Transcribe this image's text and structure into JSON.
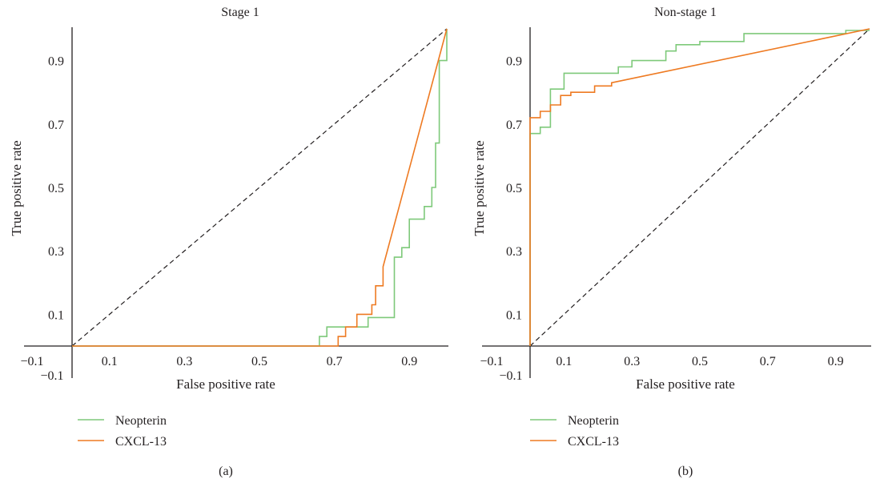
{
  "colors": {
    "neopterin": "#7ec97a",
    "cxcl13": "#ee7a22",
    "axis": "#231f20",
    "reference": "#231f20"
  },
  "chart_data": [
    {
      "type": "line",
      "panel": "(a)",
      "title": "Stage 1",
      "xlabel": "False positive rate",
      "ylabel": "True positive rate",
      "xlim": [
        0,
        1
      ],
      "ylim": [
        0,
        1
      ],
      "x_ticks": [
        "0.1",
        "0.3",
        "0.5",
        "0.7",
        "0.9"
      ],
      "y_ticks": [
        "0.1",
        "0.3",
        "0.5",
        "0.7",
        "0.9"
      ],
      "origin_x_label": "−0.1",
      "origin_y_label": "−0.1",
      "grid": false,
      "legend_position": "bottom-left",
      "reference_line": "diagonal dashed",
      "series": [
        {
          "name": "Neopterin",
          "points": [
            [
              0,
              0
            ],
            [
              0.66,
              0
            ],
            [
              0.66,
              0.03
            ],
            [
              0.68,
              0.03
            ],
            [
              0.68,
              0.06
            ],
            [
              0.79,
              0.06
            ],
            [
              0.79,
              0.09
            ],
            [
              0.86,
              0.09
            ],
            [
              0.86,
              0.28
            ],
            [
              0.88,
              0.28
            ],
            [
              0.88,
              0.31
            ],
            [
              0.9,
              0.31
            ],
            [
              0.9,
              0.4
            ],
            [
              0.94,
              0.4
            ],
            [
              0.94,
              0.44
            ],
            [
              0.96,
              0.44
            ],
            [
              0.96,
              0.5
            ],
            [
              0.97,
              0.5
            ],
            [
              0.97,
              0.64
            ],
            [
              0.98,
              0.64
            ],
            [
              0.98,
              0.9
            ],
            [
              1.0,
              0.9
            ],
            [
              1.0,
              1.0
            ]
          ]
        },
        {
          "name": "CXCL-13",
          "points": [
            [
              0,
              0
            ],
            [
              0.71,
              0
            ],
            [
              0.71,
              0.03
            ],
            [
              0.73,
              0.03
            ],
            [
              0.73,
              0.06
            ],
            [
              0.76,
              0.06
            ],
            [
              0.76,
              0.1
            ],
            [
              0.8,
              0.1
            ],
            [
              0.8,
              0.13
            ],
            [
              0.81,
              0.13
            ],
            [
              0.81,
              0.19
            ],
            [
              0.83,
              0.19
            ],
            [
              0.83,
              0.25
            ],
            [
              1.0,
              1.0
            ]
          ]
        }
      ]
    },
    {
      "type": "line",
      "panel": "(b)",
      "title": "Non-stage 1",
      "xlabel": "False positive rate",
      "ylabel": "True positive rate",
      "xlim": [
        0,
        1
      ],
      "ylim": [
        0,
        1
      ],
      "x_ticks": [
        "0.1",
        "0.3",
        "0.5",
        "0.7",
        "0.9"
      ],
      "y_ticks": [
        "0.1",
        "0.3",
        "0.5",
        "0.7",
        "0.9"
      ],
      "origin_x_label": "−0.1",
      "origin_y_label": "−0.1",
      "grid": false,
      "legend_position": "bottom-left",
      "reference_line": "diagonal dashed",
      "series": [
        {
          "name": "Neopterin",
          "points": [
            [
              0,
              0
            ],
            [
              0,
              0.67
            ],
            [
              0.03,
              0.67
            ],
            [
              0.03,
              0.69
            ],
            [
              0.06,
              0.69
            ],
            [
              0.06,
              0.81
            ],
            [
              0.1,
              0.81
            ],
            [
              0.1,
              0.86
            ],
            [
              0.26,
              0.86
            ],
            [
              0.26,
              0.88
            ],
            [
              0.3,
              0.88
            ],
            [
              0.3,
              0.9
            ],
            [
              0.4,
              0.9
            ],
            [
              0.4,
              0.93
            ],
            [
              0.43,
              0.93
            ],
            [
              0.43,
              0.95
            ],
            [
              0.5,
              0.95
            ],
            [
              0.5,
              0.96
            ],
            [
              0.63,
              0.96
            ],
            [
              0.63,
              0.985
            ],
            [
              0.93,
              0.985
            ],
            [
              0.93,
              0.995
            ],
            [
              1.0,
              0.995
            ]
          ]
        },
        {
          "name": "CXCL-13",
          "points": [
            [
              0,
              0
            ],
            [
              0,
              0.72
            ],
            [
              0.03,
              0.72
            ],
            [
              0.03,
              0.74
            ],
            [
              0.06,
              0.74
            ],
            [
              0.06,
              0.76
            ],
            [
              0.09,
              0.76
            ],
            [
              0.09,
              0.79
            ],
            [
              0.12,
              0.79
            ],
            [
              0.12,
              0.8
            ],
            [
              0.19,
              0.8
            ],
            [
              0.19,
              0.82
            ],
            [
              0.24,
              0.82
            ],
            [
              0.24,
              0.83
            ],
            [
              1.0,
              1.0
            ]
          ]
        }
      ]
    }
  ]
}
